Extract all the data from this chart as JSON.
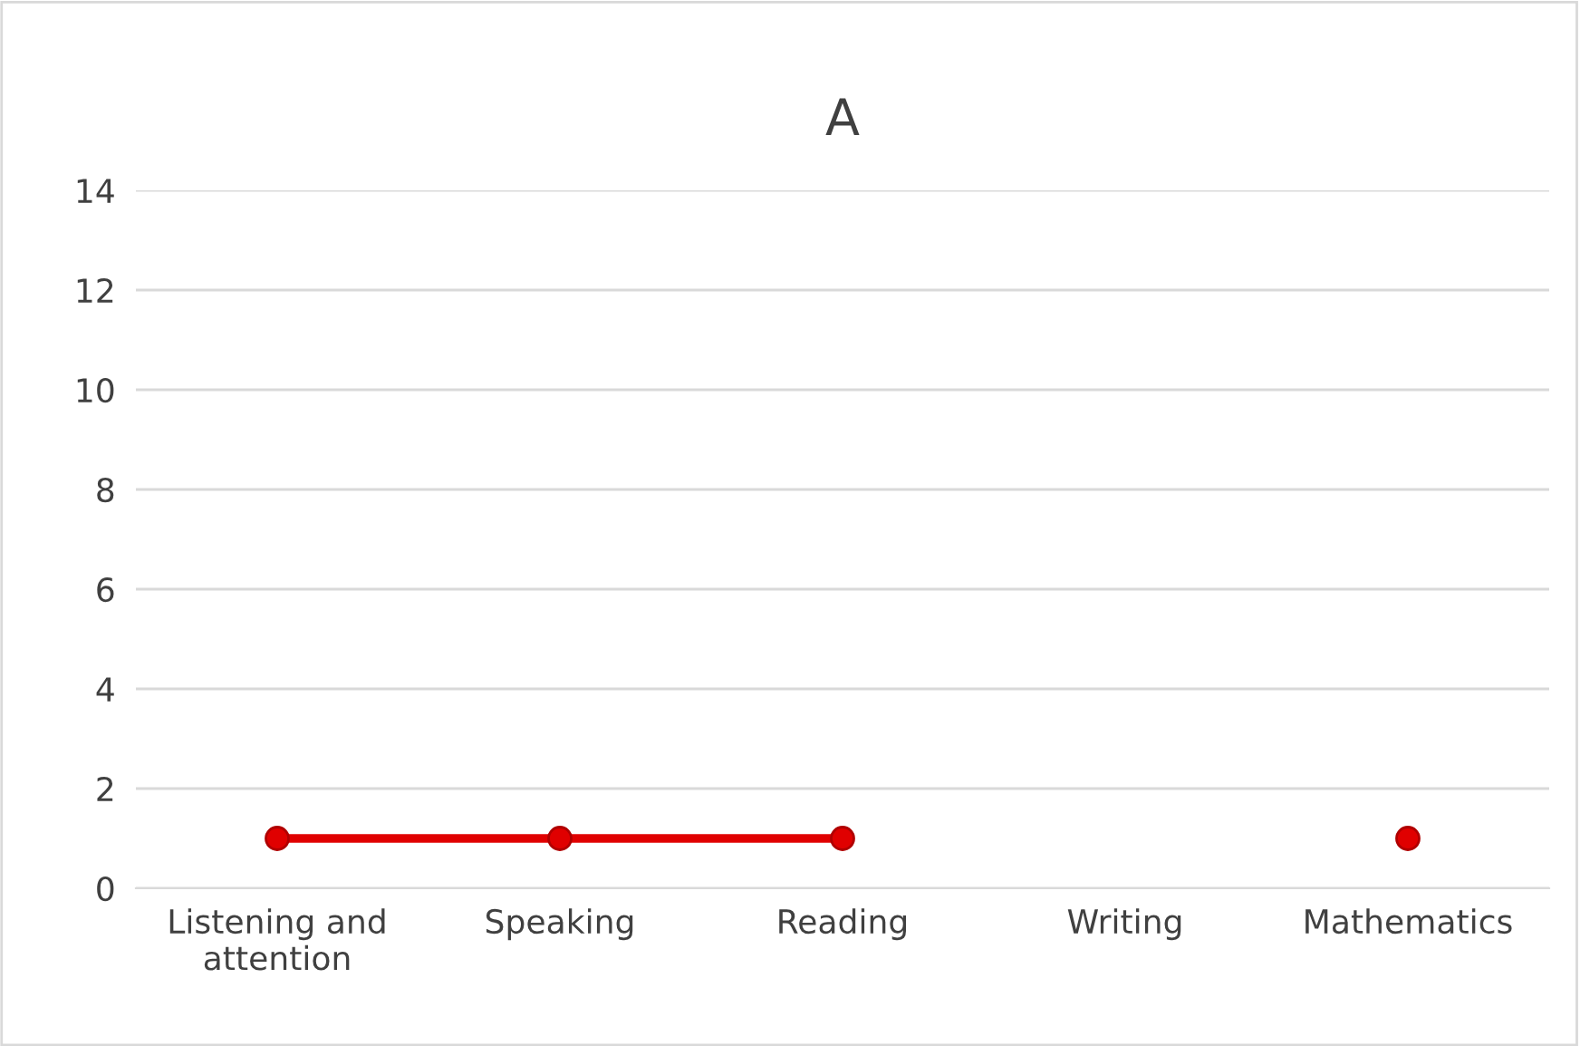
{
  "chart_data": {
    "type": "line",
    "title": "A",
    "categories": [
      "Listening and\nattention",
      "Speaking",
      "Reading",
      "Writing",
      "Mathematics"
    ],
    "series": [
      {
        "color": "#e00000",
        "values": [
          1,
          1,
          1,
          null,
          1
        ]
      }
    ],
    "ylim": [
      0,
      14
    ],
    "yticks": [
      0,
      2,
      4,
      6,
      8,
      10,
      12,
      14
    ],
    "grid": "y",
    "marker": "circle",
    "line_style": "solid"
  }
}
